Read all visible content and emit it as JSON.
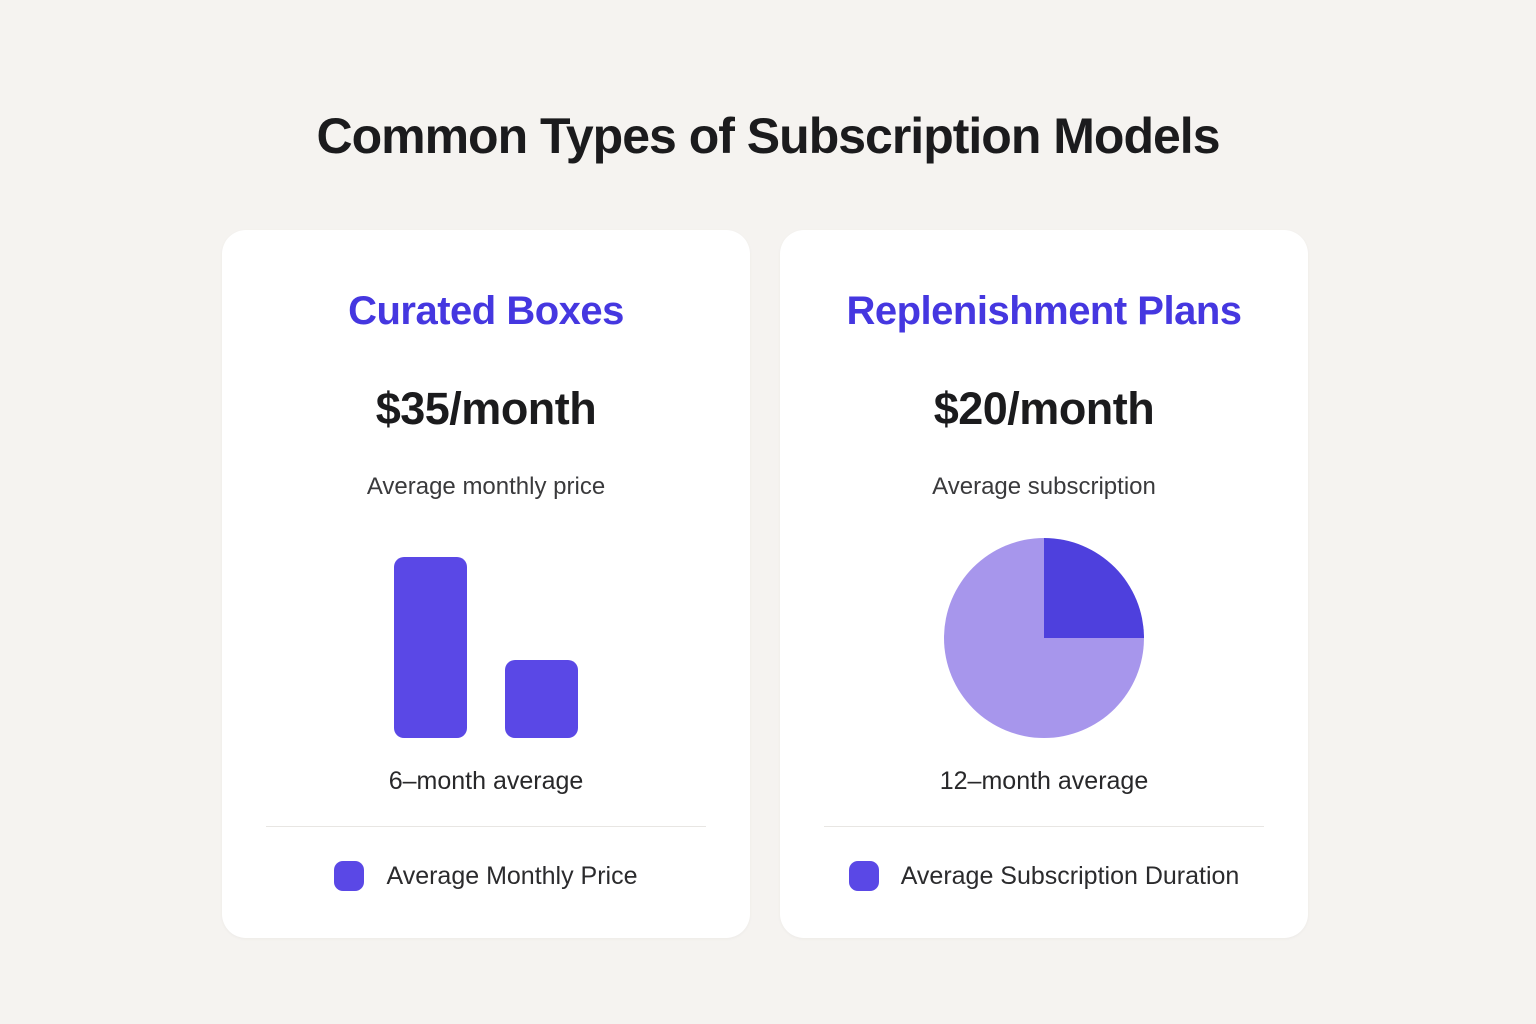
{
  "page": {
    "title": "Common Types of Subscription Models",
    "background_color": "#F5F3F0"
  },
  "colors": {
    "accent_purple": "#4537E0",
    "bar_purple": "#5A48E6",
    "pie_dark": "#4E40DD",
    "pie_light": "#A796EC",
    "divider": "#E8E6E3",
    "title_text": "#1B1B1D"
  },
  "cards": [
    {
      "heading": "Curated Boxes",
      "price": "$35/month",
      "subtitle": "Average monthly price",
      "caption": "6–month average",
      "legend": {
        "label": "Average Monthly Price",
        "color": "#5A48E6"
      }
    },
    {
      "heading": "Replenishment Plans",
      "price": "$20/month",
      "subtitle": "Average subscription",
      "caption": "12–month average",
      "legend": {
        "label": "Average Subscription Duration",
        "color": "#5A48E6"
      }
    }
  ],
  "chart_data": [
    {
      "type": "bar",
      "card": "Curated Boxes",
      "categories": [
        "bar-1",
        "bar-2"
      ],
      "values": [
        100,
        43
      ],
      "units": "relative height (no axis or value labels shown)",
      "color": "#5A48E6",
      "caption": "6–month average",
      "legend": [
        "Average Monthly Price"
      ],
      "legend_position": "bottom"
    },
    {
      "type": "pie",
      "card": "Replenishment Plans",
      "slices": [
        {
          "label": "Average Subscription Duration",
          "value": 25,
          "color": "#4E40DD"
        },
        {
          "label": "",
          "value": 75,
          "color": "#A796EC"
        }
      ],
      "start_angle_deg": 0,
      "caption": "12–month average",
      "legend": [
        "Average Subscription Duration"
      ],
      "legend_position": "bottom"
    }
  ]
}
